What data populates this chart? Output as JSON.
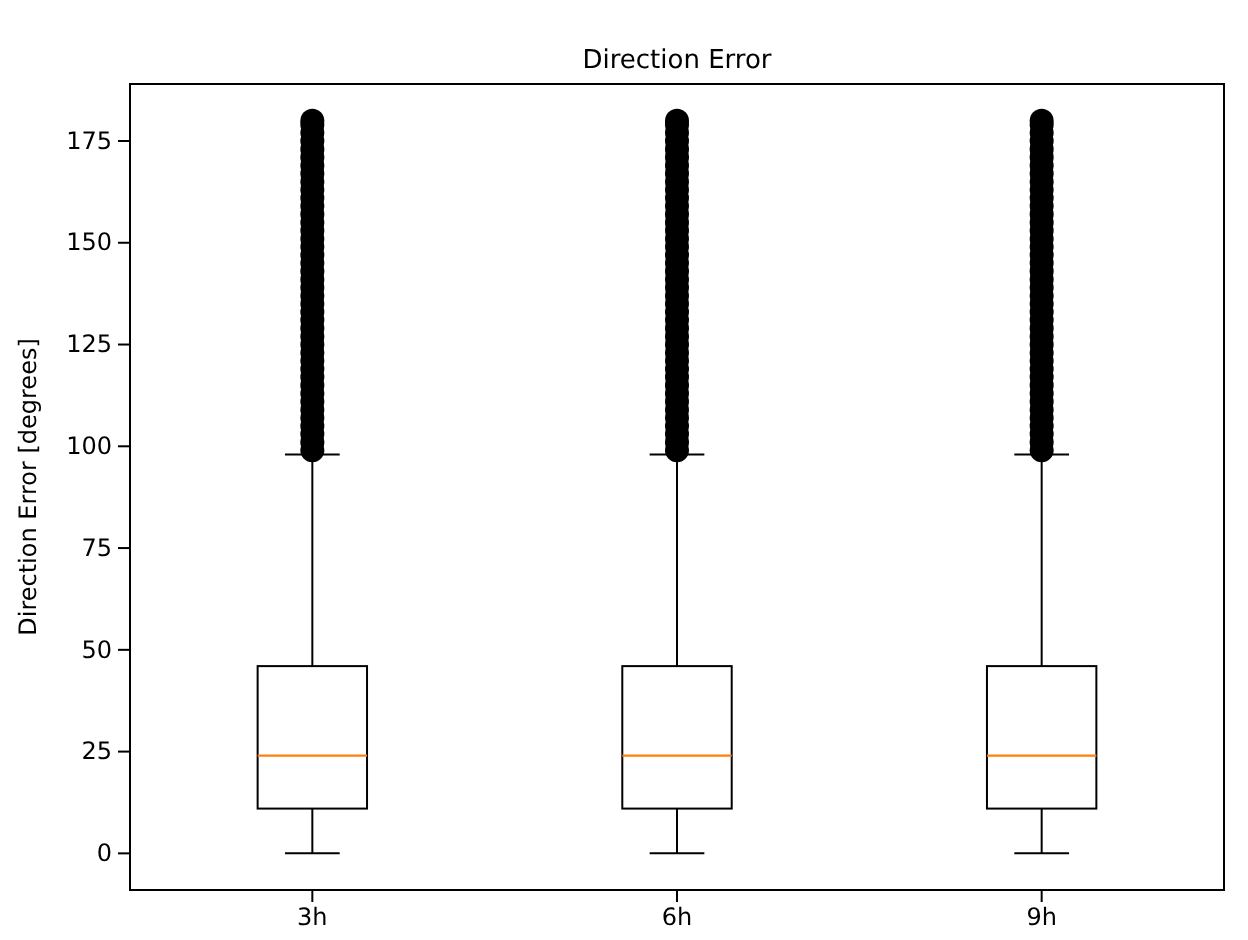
{
  "chart_data": {
    "type": "box",
    "title": "Direction Error",
    "ylabel": "Direction Error [degrees]",
    "categories": [
      "3h",
      "6h",
      "9h"
    ],
    "ylim": [
      -9,
      189
    ],
    "yticks": [
      0,
      25,
      50,
      75,
      100,
      125,
      150,
      175
    ],
    "grid": false,
    "boxes": [
      {
        "low": 0,
        "q1": 11,
        "median": 24,
        "q3": 46,
        "high": 98,
        "outliers": [
          99,
          101,
          103,
          105,
          107,
          109,
          111,
          113,
          115,
          117,
          119,
          121,
          123,
          125,
          127,
          129,
          131,
          133,
          135,
          137,
          139,
          141,
          143,
          145,
          147,
          149,
          151,
          153,
          155,
          157,
          159,
          161,
          163,
          165,
          167,
          169,
          171,
          173,
          175,
          177,
          179,
          180
        ]
      },
      {
        "low": 0,
        "q1": 11,
        "median": 24,
        "q3": 46,
        "high": 98,
        "outliers": [
          99,
          101,
          103,
          105,
          107,
          109,
          111,
          113,
          115,
          117,
          119,
          121,
          123,
          125,
          127,
          129,
          131,
          133,
          135,
          137,
          139,
          141,
          143,
          145,
          147,
          149,
          151,
          153,
          155,
          157,
          159,
          161,
          163,
          165,
          167,
          169,
          171,
          173,
          175,
          177,
          179,
          180
        ]
      },
      {
        "low": 0,
        "q1": 11,
        "median": 24,
        "q3": 46,
        "high": 98,
        "outliers": [
          99,
          101,
          103,
          105,
          107,
          109,
          111,
          113,
          115,
          117,
          119,
          121,
          123,
          125,
          127,
          129,
          131,
          133,
          135,
          137,
          139,
          141,
          143,
          145,
          147,
          149,
          151,
          153,
          155,
          157,
          159,
          161,
          163,
          165,
          167,
          169,
          171,
          173,
          175,
          177,
          179,
          180
        ]
      }
    ]
  }
}
